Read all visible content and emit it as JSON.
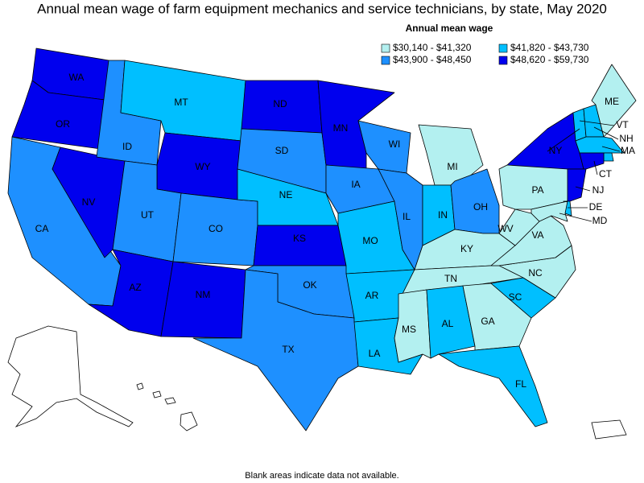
{
  "title": "Annual mean wage of farm equipment mechanics and service technicians, by state, May 2020",
  "legend": {
    "title": "Annual mean wage",
    "items": [
      {
        "label": "$30,140 - $41,320",
        "color": "#b3f0f0"
      },
      {
        "label": "$41,820 - $43,730",
        "color": "#00bfff"
      },
      {
        "label": "$43,900 - $48,450",
        "color": "#1e90ff"
      },
      {
        "label": "$48,620 - $59,730",
        "color": "#0000ee"
      }
    ]
  },
  "states": [
    {
      "abbr": "WA",
      "bin": 3
    },
    {
      "abbr": "OR",
      "bin": 3
    },
    {
      "abbr": "CA",
      "bin": 2
    },
    {
      "abbr": "NV",
      "bin": 3
    },
    {
      "abbr": "ID",
      "bin": 2
    },
    {
      "abbr": "MT",
      "bin": 1
    },
    {
      "abbr": "WY",
      "bin": 3
    },
    {
      "abbr": "UT",
      "bin": 2
    },
    {
      "abbr": "CO",
      "bin": 2
    },
    {
      "abbr": "AZ",
      "bin": 3
    },
    {
      "abbr": "NM",
      "bin": 3
    },
    {
      "abbr": "ND",
      "bin": 3
    },
    {
      "abbr": "SD",
      "bin": 2
    },
    {
      "abbr": "NE",
      "bin": 1
    },
    {
      "abbr": "KS",
      "bin": 3
    },
    {
      "abbr": "OK",
      "bin": 2
    },
    {
      "abbr": "TX",
      "bin": 2
    },
    {
      "abbr": "MN",
      "bin": 3
    },
    {
      "abbr": "IA",
      "bin": 2
    },
    {
      "abbr": "MO",
      "bin": 1
    },
    {
      "abbr": "AR",
      "bin": 1
    },
    {
      "abbr": "LA",
      "bin": 1
    },
    {
      "abbr": "WI",
      "bin": 2
    },
    {
      "abbr": "IL",
      "bin": 2
    },
    {
      "abbr": "MI",
      "bin": 0
    },
    {
      "abbr": "IN",
      "bin": 1
    },
    {
      "abbr": "OH",
      "bin": 2
    },
    {
      "abbr": "KY",
      "bin": 0
    },
    {
      "abbr": "TN",
      "bin": 0
    },
    {
      "abbr": "MS",
      "bin": 0
    },
    {
      "abbr": "AL",
      "bin": 1
    },
    {
      "abbr": "GA",
      "bin": 0
    },
    {
      "abbr": "FL",
      "bin": 1
    },
    {
      "abbr": "SC",
      "bin": 1
    },
    {
      "abbr": "NC",
      "bin": 0
    },
    {
      "abbr": "VA",
      "bin": 0
    },
    {
      "abbr": "WV",
      "bin": 0
    },
    {
      "abbr": "PA",
      "bin": 0
    },
    {
      "abbr": "NY",
      "bin": 3
    },
    {
      "abbr": "VT",
      "bin": 1
    },
    {
      "abbr": "NH",
      "bin": 1
    },
    {
      "abbr": "ME",
      "bin": 0
    },
    {
      "abbr": "MA",
      "bin": 1
    },
    {
      "bin": 1
    },
    {
      "abbr": "CT",
      "bin": 3
    },
    {
      "abbr": "NJ",
      "bin": 3
    },
    {
      "abbr": "DE",
      "bin": 1
    },
    {
      "abbr": "MD",
      "bin": 0
    }
  ],
  "footnote": "Blank areas indicate data not available."
}
